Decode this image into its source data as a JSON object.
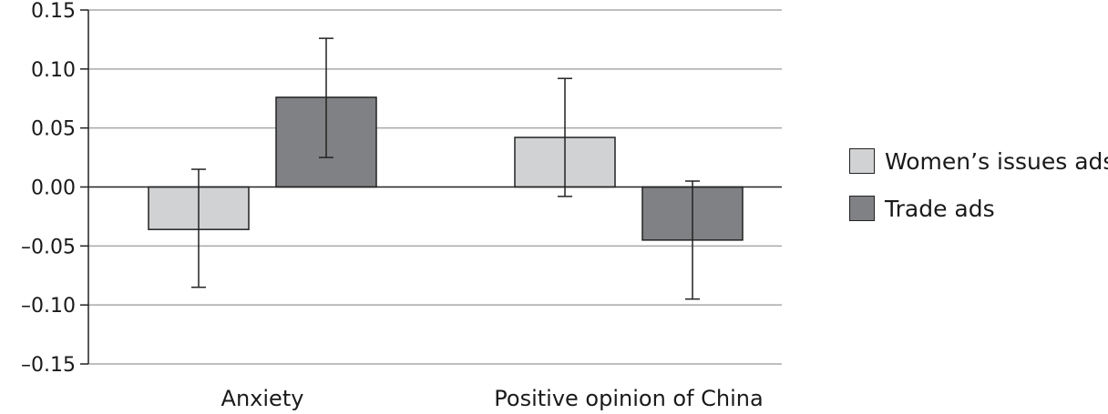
{
  "chart_data": {
    "type": "bar",
    "categories": [
      "Anxiety",
      "Positive opinion of China"
    ],
    "series": [
      {
        "name": "Women’s issues ads",
        "color": "#d1d2d4",
        "values": [
          -0.036,
          0.042
        ],
        "err_low": [
          -0.085,
          -0.008
        ],
        "err_high": [
          0.015,
          0.092
        ]
      },
      {
        "name": "Trade ads",
        "color": "#808184",
        "values": [
          0.076,
          -0.045
        ],
        "err_low": [
          0.025,
          -0.095
        ],
        "err_high": [
          0.126,
          0.005
        ]
      }
    ],
    "y_ticks": [
      "0.15",
      "0.10",
      "0.05",
      "0.00",
      "–0.05",
      "–0.10",
      "–0.15"
    ],
    "y_tick_values": [
      0.15,
      0.1,
      0.05,
      0.0,
      -0.05,
      -0.1,
      -0.15
    ],
    "ylim": [
      -0.15,
      0.15
    ],
    "grid": true,
    "legend_position": "right"
  }
}
